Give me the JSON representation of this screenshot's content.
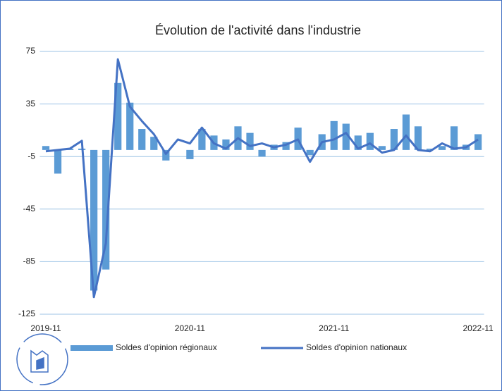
{
  "chart_data": {
    "type": "bar-line",
    "title": "Évolution de l'activité dans l'industrie",
    "categories": [
      "2019-11",
      null,
      null,
      null,
      null,
      null,
      null,
      null,
      null,
      null,
      null,
      null,
      "2020-11",
      null,
      null,
      null,
      null,
      null,
      null,
      null,
      null,
      null,
      null,
      null,
      "2021-11",
      null,
      null,
      null,
      null,
      null,
      null,
      null,
      null,
      null,
      null,
      null,
      "2022-11"
    ],
    "series": [
      {
        "name": "Soldes d'opinion régionaux",
        "type": "bar",
        "color": "#5b9bd5",
        "values": [
          3,
          -18,
          1,
          1,
          -107,
          -91,
          51,
          36,
          16,
          10,
          -8,
          0,
          -7,
          16,
          11,
          8,
          18,
          13,
          -5,
          4,
          6,
          17,
          -4,
          12,
          22,
          20,
          11,
          13,
          3,
          16,
          27,
          18,
          1,
          3,
          18,
          4,
          12
        ]
      },
      {
        "name": "Soldes d'opinion nationaux",
        "type": "line",
        "color": "#4472c4",
        "values": [
          -1,
          0,
          1,
          7,
          -112,
          -71,
          69,
          33,
          22,
          12,
          -3,
          8,
          5,
          17,
          5,
          1,
          9,
          3,
          5,
          2,
          4,
          8,
          -9,
          6,
          8,
          13,
          1,
          5,
          -2,
          0,
          11,
          0,
          -1,
          5,
          1,
          2,
          8
        ]
      }
    ],
    "ylim": [
      -125,
      75
    ],
    "yticks": [
      -125,
      -85,
      -45,
      -5,
      35,
      75
    ],
    "grid": true,
    "legend": "bottom"
  }
}
